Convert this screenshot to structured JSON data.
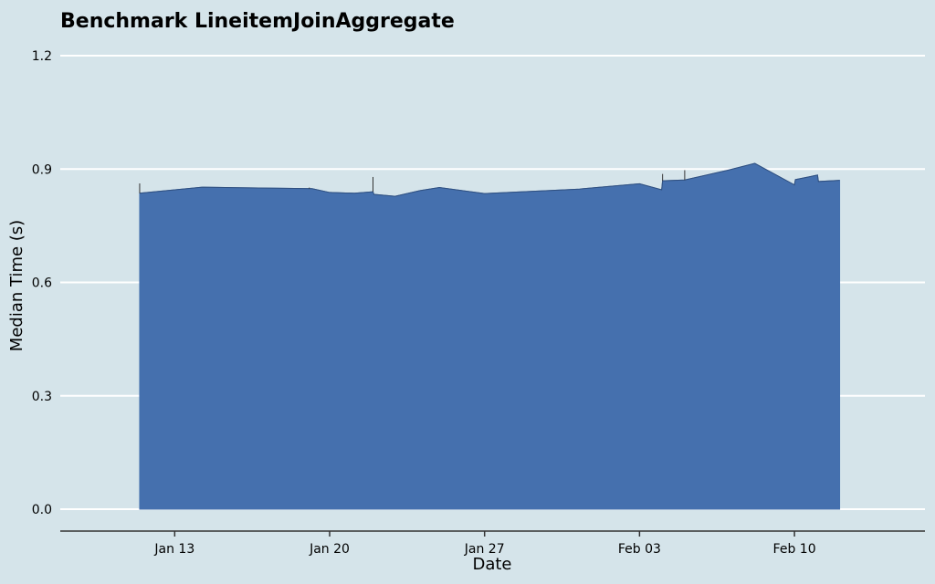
{
  "chart_data": {
    "type": "area",
    "title": "Benchmark LineitemJoinAggregate",
    "xlabel": "Date",
    "ylabel": "Median Time (s)",
    "ylim": [
      0,
      1.2
    ],
    "yticks": [
      "0.0",
      "0.3",
      "0.6",
      "0.9",
      "1.2"
    ],
    "ytick_values": [
      0,
      0.3,
      0.6,
      0.9,
      1.2
    ],
    "xlim": [
      "2025-01-07T19:55",
      "2025-02-15T21:30"
    ],
    "xticks": [
      {
        "date": "2025-01-13",
        "label": "Jan 13"
      },
      {
        "date": "2025-01-20",
        "label": "Jan 20"
      },
      {
        "date": "2025-01-27",
        "label": "Jan 27"
      },
      {
        "date": "2025-02-03",
        "label": "Feb 03"
      },
      {
        "date": "2025-02-10",
        "label": "Feb 10"
      }
    ],
    "grid": "horizontal",
    "colors": {
      "fill": "#4570ae",
      "background": "#d5e4ea",
      "grid": "#ffffff",
      "axis": "#333333",
      "errorbar": "#333333"
    },
    "series": [
      {
        "points": [
          {
            "x": "2025-01-11T10:00",
            "y": 0.836
          },
          {
            "x": "2025-01-14T06:00",
            "y": 0.852
          },
          {
            "x": "2025-01-19T05:00",
            "y": 0.848
          },
          {
            "x": "2025-01-20T00:00",
            "y": 0.838
          },
          {
            "x": "2025-01-21T03:00",
            "y": 0.836
          },
          {
            "x": "2025-01-21T23:00",
            "y": 0.84
          },
          {
            "x": "2025-01-22T00:00",
            "y": 0.833
          },
          {
            "x": "2025-01-22T23:00",
            "y": 0.828
          },
          {
            "x": "2025-01-24T02:00",
            "y": 0.843
          },
          {
            "x": "2025-01-24T23:00",
            "y": 0.851
          },
          {
            "x": "2025-01-27T00:00",
            "y": 0.835
          },
          {
            "x": "2025-01-31T07:00",
            "y": 0.847
          },
          {
            "x": "2025-02-03T00:00",
            "y": 0.861
          },
          {
            "x": "2025-02-04T00:00",
            "y": 0.845
          },
          {
            "x": "2025-02-04T01:00",
            "y": 0.869
          },
          {
            "x": "2025-02-05T01:00",
            "y": 0.871
          },
          {
            "x": "2025-02-07T00:00",
            "y": 0.897
          },
          {
            "x": "2025-02-08T05:00",
            "y": 0.915
          },
          {
            "x": "2025-02-10T00:00",
            "y": 0.858
          },
          {
            "x": "2025-02-10T01:00",
            "y": 0.872
          },
          {
            "x": "2025-02-11T01:00",
            "y": 0.884
          },
          {
            "x": "2025-02-11T02:00",
            "y": 0.867
          },
          {
            "x": "2025-02-12T01:00",
            "y": 0.87
          }
        ],
        "error_bars": [
          {
            "x": "2025-01-11T10:00",
            "low": 0.836,
            "high": 0.862
          },
          {
            "x": "2025-01-19T02:00",
            "low": 0.848,
            "high": 0.851
          },
          {
            "x": "2025-01-21T23:00",
            "low": 0.84,
            "high": 0.879
          },
          {
            "x": "2025-02-04T01:00",
            "low": 0.869,
            "high": 0.887
          },
          {
            "x": "2025-02-05T01:00",
            "low": 0.871,
            "high": 0.897
          }
        ]
      }
    ]
  }
}
